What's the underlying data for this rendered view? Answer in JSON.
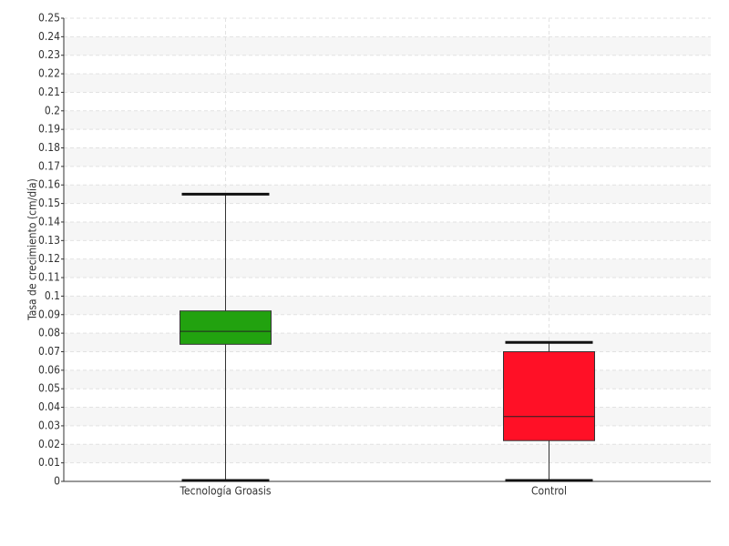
{
  "chart_data": {
    "type": "box",
    "y_label": "Tasa de crecimiento (cm/día)",
    "categories": [
      "Tecnología Groasis",
      "Control"
    ],
    "boxes": [
      {
        "min": 0,
        "q1": 0.074,
        "median": 0.081,
        "q3": 0.092,
        "max": 0.155,
        "color": "#22a20f"
      },
      {
        "min": 0,
        "q1": 0.022,
        "median": 0.035,
        "q3": 0.07,
        "max": 0.075,
        "color": "#ff1026"
      }
    ],
    "ylim": [
      0,
      0.25
    ],
    "yticks": [
      0,
      0.01,
      0.02,
      0.03,
      0.04,
      0.05,
      0.06,
      0.07,
      0.08,
      0.09,
      0.1,
      0.11,
      0.12,
      0.13,
      0.14,
      0.15,
      0.16,
      0.17,
      0.18,
      0.19,
      0.2,
      0.21,
      0.22,
      0.23,
      0.24,
      0.25
    ],
    "grid": true
  }
}
